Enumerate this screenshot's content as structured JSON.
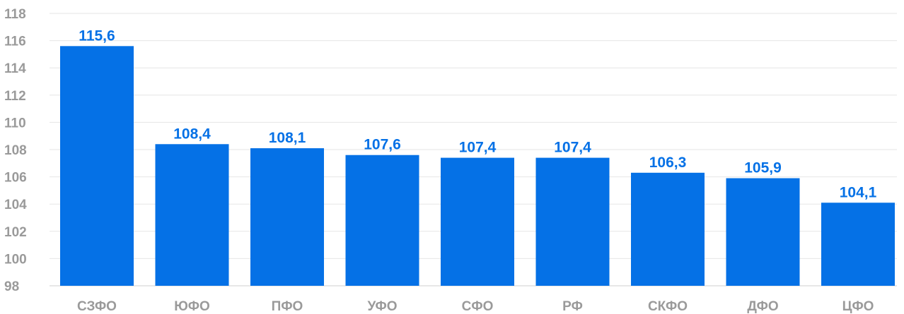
{
  "chart_data": {
    "type": "bar",
    "categories": [
      "СЗФО",
      "ЮФО",
      "ПФО",
      "УФО",
      "СФО",
      "РФ",
      "СКФО",
      "ДФО",
      "ЦФО"
    ],
    "values": [
      115.6,
      108.4,
      108.1,
      107.6,
      107.4,
      107.4,
      106.3,
      105.9,
      104.1
    ],
    "value_labels": [
      "115,6",
      "108,4",
      "108,1",
      "107,6",
      "107,4",
      "107,4",
      "106,3",
      "105,9",
      "104,1"
    ],
    "title": "",
    "xlabel": "",
    "ylabel": "",
    "ylim": [
      98,
      118
    ],
    "yticks": [
      "98",
      "100",
      "102",
      "104",
      "106",
      "108",
      "110",
      "112",
      "114",
      "116",
      "118"
    ],
    "grid": true,
    "legend": "none",
    "colors": {
      "bar": "#0571e6",
      "data_label": "#0571e6",
      "tick_label": "#9a9a9a",
      "grid": "#e6e6e6"
    }
  }
}
